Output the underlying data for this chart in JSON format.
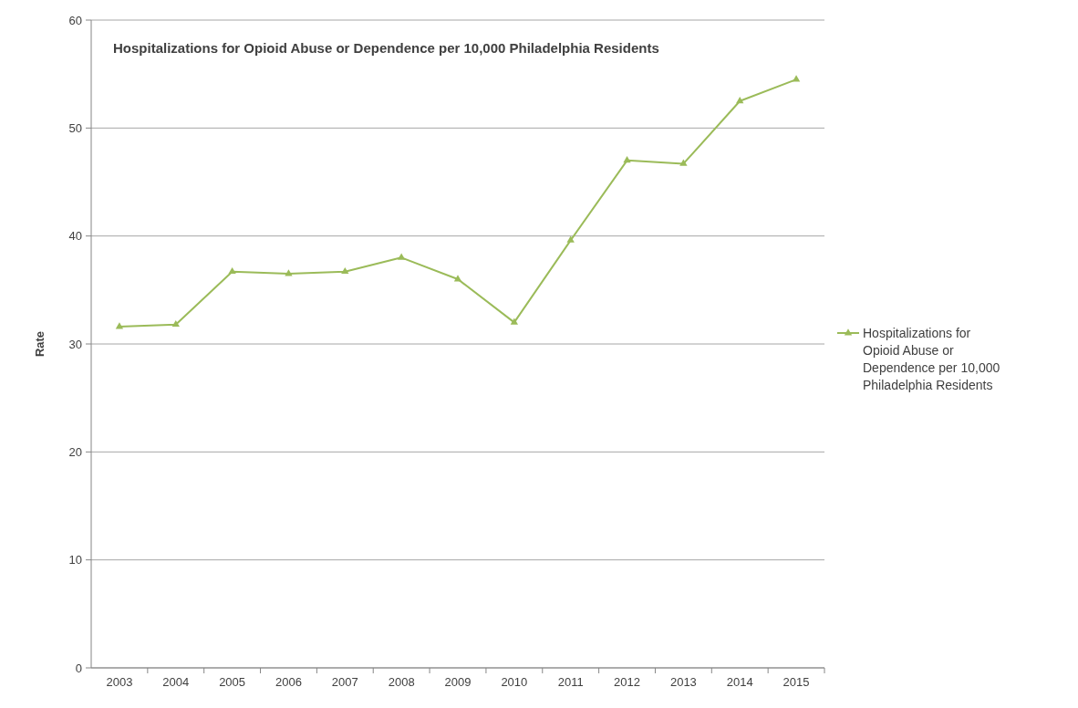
{
  "chart_data": {
    "type": "line",
    "title": "Hospitalizations for Opioid Abuse or Dependence per 10,000 Philadelphia Residents",
    "ylabel": "Rate",
    "categories": [
      "2003",
      "2004",
      "2005",
      "2006",
      "2007",
      "2008",
      "2009",
      "2010",
      "2011",
      "2012",
      "2013",
      "2014",
      "2015"
    ],
    "series": [
      {
        "name": "Hospitalizations for Opioid Abuse or Dependence per 10,000 Philadelphia Residents",
        "color": "#9bbb59",
        "values": [
          31.6,
          31.8,
          36.7,
          36.5,
          36.7,
          38.0,
          36.0,
          32.0,
          39.6,
          47.0,
          46.7,
          52.5,
          54.5
        ]
      }
    ],
    "ylim": [
      0,
      60
    ],
    "yticks": [
      0,
      10,
      20,
      30,
      40,
      50,
      60
    ],
    "grid": "y",
    "legend": "right",
    "marker": "triangle",
    "line_style": "solid"
  }
}
